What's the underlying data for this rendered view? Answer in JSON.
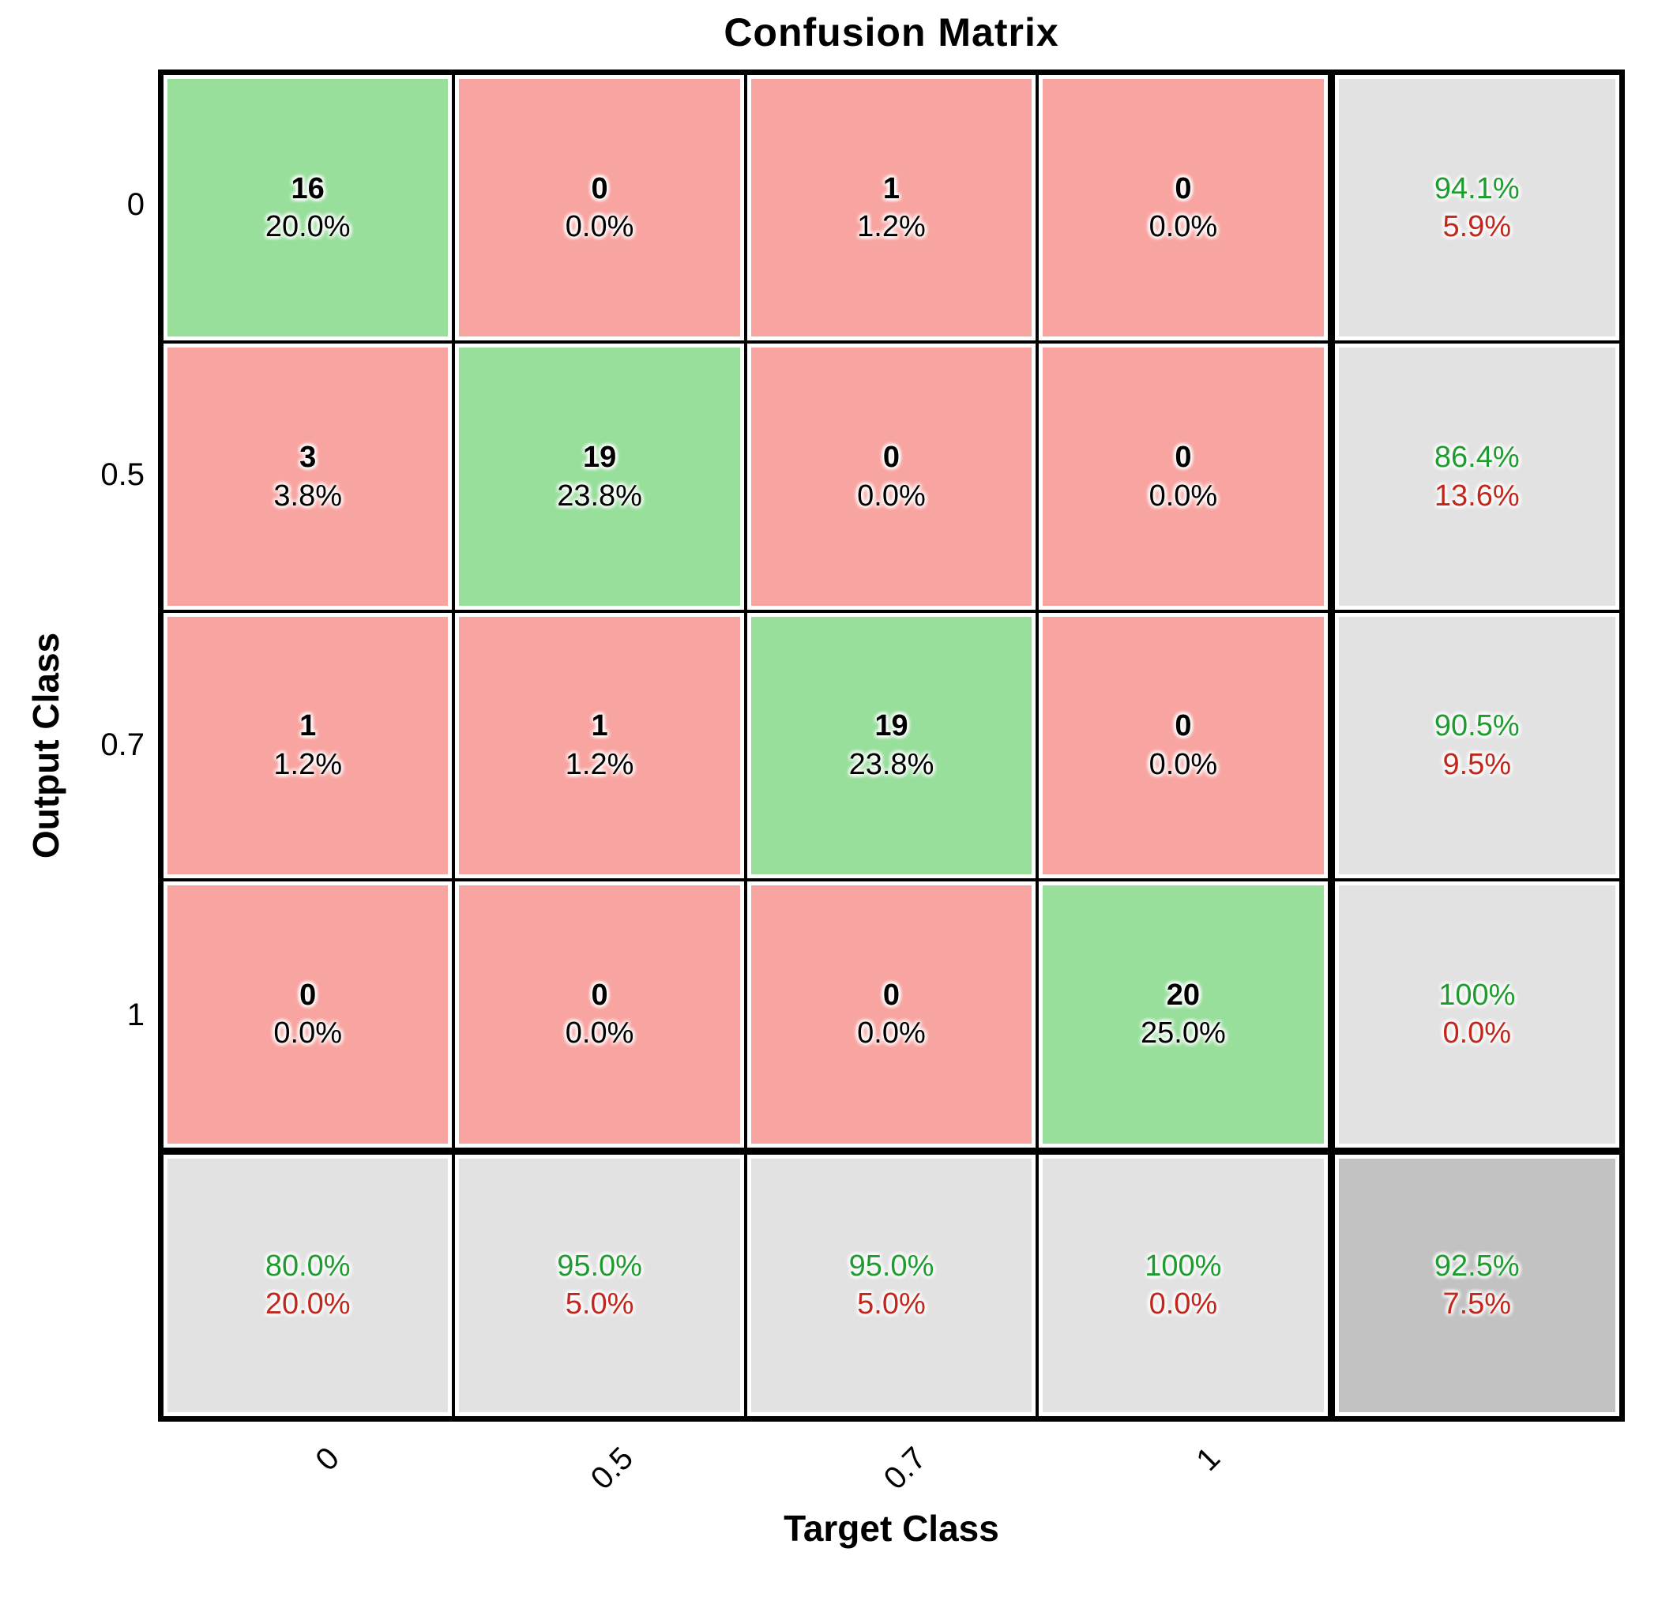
{
  "title": "Confusion Matrix",
  "axes": {
    "x_label": "Target Class",
    "y_label": "Output Class",
    "x_ticks": [
      "0",
      "0.5",
      "0.7",
      "1"
    ],
    "y_ticks": [
      "0",
      "0.5",
      "0.7",
      "1"
    ]
  },
  "colors": {
    "diagonal_cell": "#98df9c",
    "offdiagonal_cell": "#f8a4a0",
    "summary_cell": "#e2e2e2",
    "total_cell": "#c2c2c2",
    "good_text": "#1e9c30",
    "bad_text": "#c1271d",
    "grid_line": "#000000"
  },
  "chart_data": {
    "type": "heatmap",
    "subtype": "confusion_matrix",
    "title": "Confusion Matrix",
    "xlabel": "Target Class",
    "ylabel": "Output Class",
    "target_classes": [
      "0",
      "0.5",
      "0.7",
      "1"
    ],
    "output_classes": [
      "0",
      "0.5",
      "0.7",
      "1"
    ],
    "counts": [
      [
        16,
        0,
        1,
        0
      ],
      [
        3,
        19,
        0,
        0
      ],
      [
        1,
        1,
        19,
        0
      ],
      [
        0,
        0,
        0,
        20
      ]
    ],
    "count_percent": [
      [
        "20.0%",
        "0.0%",
        "1.2%",
        "0.0%"
      ],
      [
        "3.8%",
        "23.8%",
        "0.0%",
        "0.0%"
      ],
      [
        "1.2%",
        "1.2%",
        "23.8%",
        "0.0%"
      ],
      [
        "0.0%",
        "0.0%",
        "0.0%",
        "25.0%"
      ]
    ],
    "row_summary": [
      {
        "top": "94.1%",
        "bottom": "5.9%"
      },
      {
        "top": "86.4%",
        "bottom": "13.6%"
      },
      {
        "top": "90.5%",
        "bottom": "9.5%"
      },
      {
        "top": "100%",
        "bottom": "0.0%"
      }
    ],
    "col_summary": [
      {
        "top": "80.0%",
        "bottom": "20.0%"
      },
      {
        "top": "95.0%",
        "bottom": "5.0%"
      },
      {
        "top": "95.0%",
        "bottom": "5.0%"
      },
      {
        "top": "100%",
        "bottom": "0.0%"
      }
    ],
    "overall": {
      "top": "92.5%",
      "bottom": "7.5%"
    }
  }
}
